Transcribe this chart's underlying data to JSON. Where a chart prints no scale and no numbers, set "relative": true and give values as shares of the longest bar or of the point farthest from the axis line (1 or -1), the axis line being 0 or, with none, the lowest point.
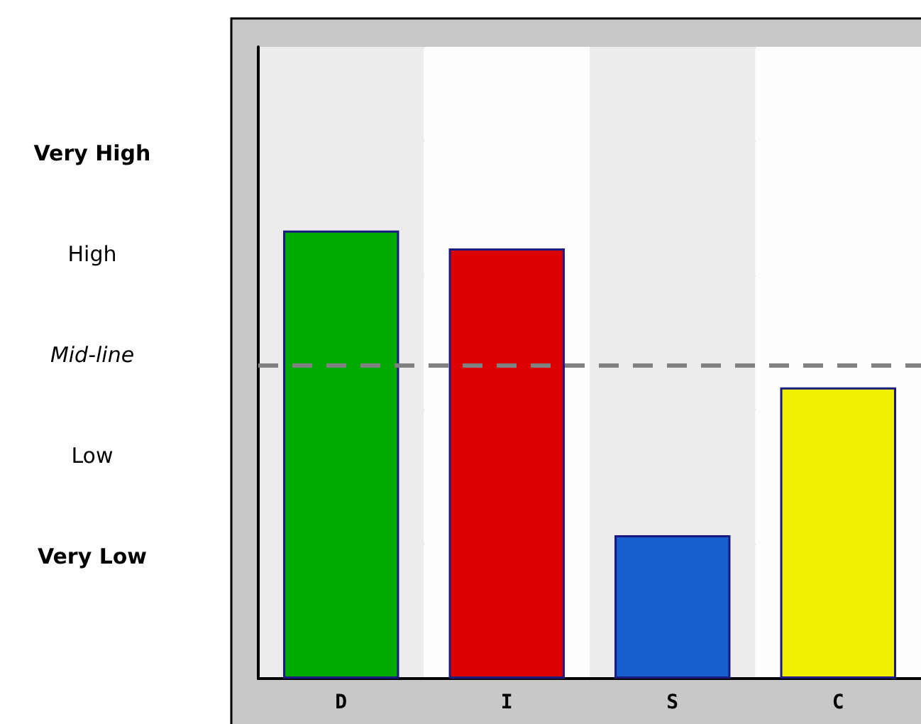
{
  "chart_data": {
    "type": "bar",
    "categories": [
      "D",
      "I",
      "S",
      "C"
    ],
    "values": [
      1,
      0.96,
      0.32,
      0.65
    ],
    "colors": [
      "#00aa00",
      "#dd0000",
      "#165fcc",
      "#f2f000"
    ],
    "relative": true,
    "annotations": [
      "Very High",
      "High",
      "Mid-line",
      "Low",
      "Very Low"
    ],
    "grid": "y",
    "ref_lines": [
      {
        "axis": "y",
        "value": 0.7,
        "color": "#808080",
        "line_style": "dashed"
      }
    ]
  }
}
